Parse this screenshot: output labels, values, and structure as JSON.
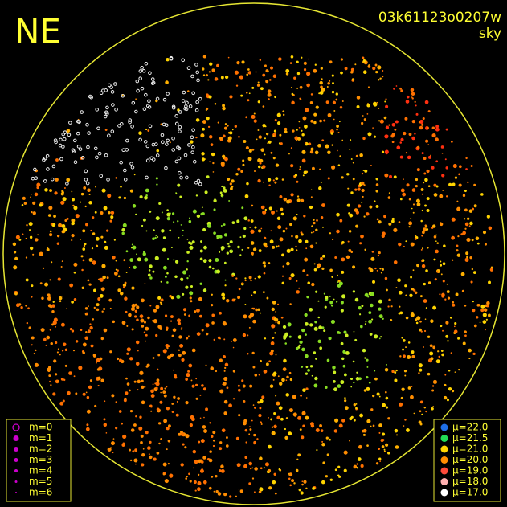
{
  "header": {
    "direction": "NE",
    "image_id": "03k61123o0207w",
    "mode": "sky"
  },
  "magnitude_legend": {
    "color": "#cc00cc",
    "items": [
      "m=0",
      "m=1",
      "m=2",
      "m=3",
      "m=4",
      "m=5",
      "m=6"
    ]
  },
  "brightness_legend": {
    "items": [
      {
        "label": "μ=22.0",
        "color": "#1e6ee6"
      },
      {
        "label": "μ=21.5",
        "color": "#22dd55"
      },
      {
        "label": "μ=21.0",
        "color": "#ffd400"
      },
      {
        "label": "μ=20.0",
        "color": "#ff8c00"
      },
      {
        "label": "μ=19.0",
        "color": "#ff4a3a"
      },
      {
        "label": "μ=18.0",
        "color": "#ffb0b0"
      },
      {
        "label": "μ=17.0",
        "color": "#ffffff"
      }
    ]
  }
}
